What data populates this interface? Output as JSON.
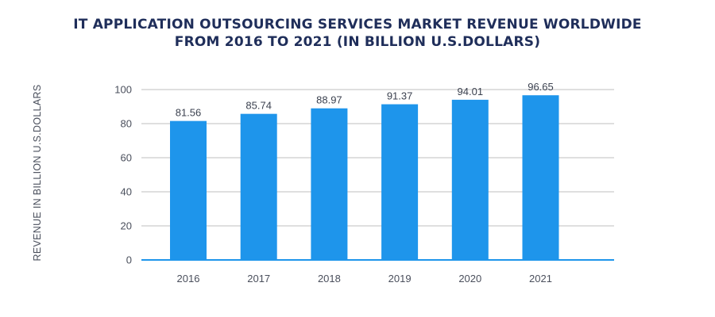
{
  "chart_data": {
    "type": "bar",
    "title_lines": [
      "IT APPLICATION OUTSOURCING SERVICES MARKET REVENUE WORLDWIDE",
      "FROM 2016 TO 2021 (IN BILLION U.S.DOLLARS)"
    ],
    "ylabel": "REVENUE IN BILLION U.S.DOLLARS",
    "xlabel": "",
    "categories": [
      "2016",
      "2017",
      "2018",
      "2019",
      "2020",
      "2021"
    ],
    "values": [
      81.56,
      85.74,
      88.97,
      91.37,
      94.01,
      96.65
    ],
    "value_labels": [
      "81.56",
      "85.74",
      "88.97",
      "91.37",
      "94.01",
      "96.65"
    ],
    "ylim": [
      0,
      100
    ],
    "yticks": [
      0,
      20,
      40,
      60,
      80,
      100
    ],
    "ytick_labels": [
      "0",
      "20",
      "40",
      "60",
      "80",
      "100"
    ],
    "grid": "horizontal",
    "legend": "none",
    "colors": {
      "bar": "#1e95eb",
      "axis": "#1e95eb",
      "grid": "#bfbfbf",
      "title": "#1f2e5a"
    }
  }
}
